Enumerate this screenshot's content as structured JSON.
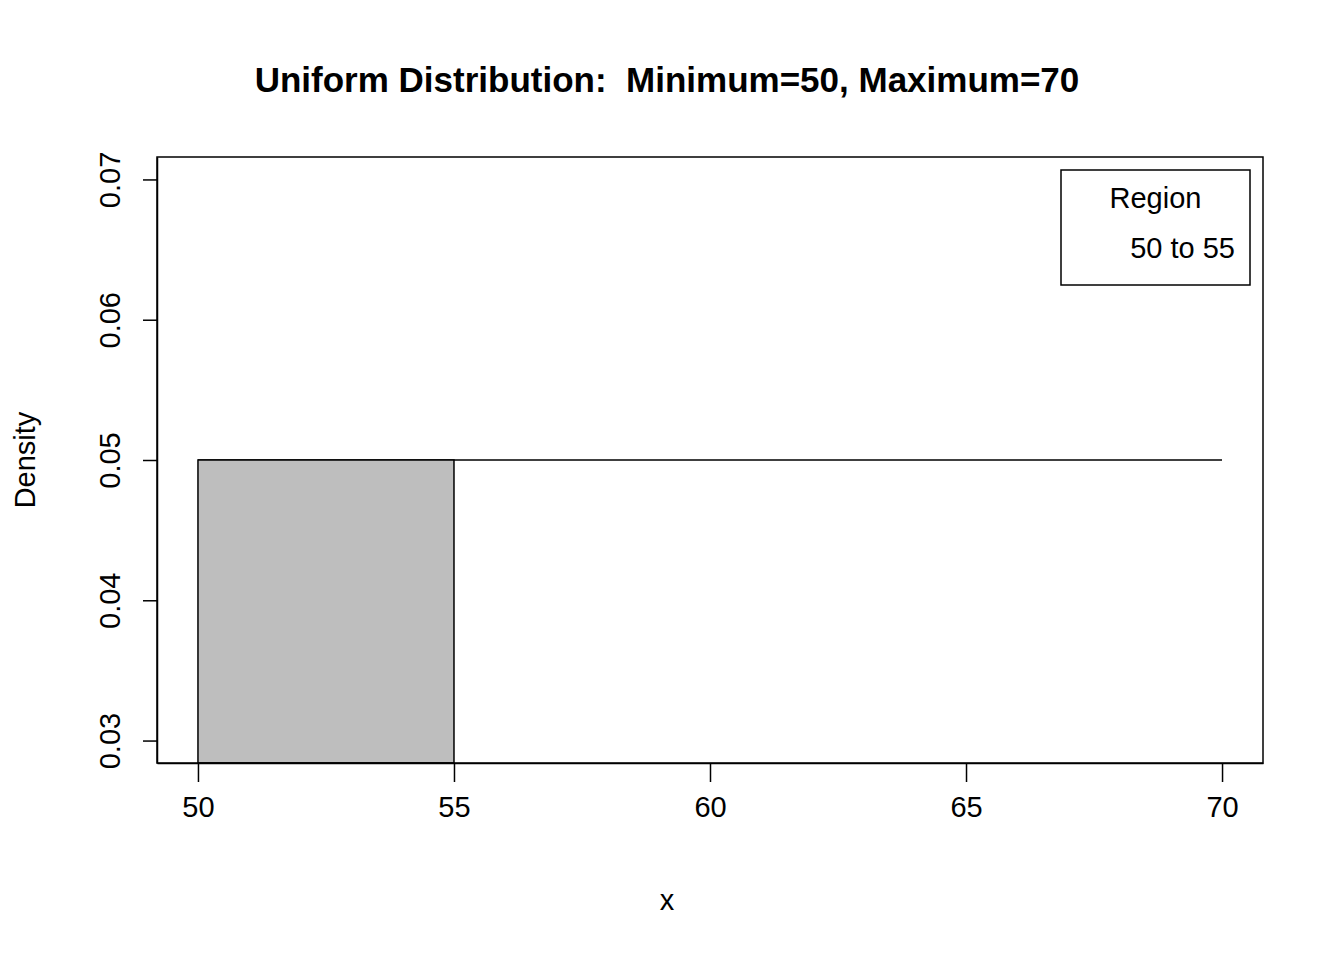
{
  "chart_data": {
    "type": "line",
    "title": "Uniform Distribution:  Minimum=50, Maximum=70",
    "xlabel": "x",
    "ylabel": "Density",
    "xlim": [
      49.2,
      70.8
    ],
    "xticks": [
      50,
      55,
      60,
      65,
      70
    ],
    "ylim": [
      0.0284,
      0.0716
    ],
    "yticks": [
      0.03,
      0.04,
      0.05,
      0.06,
      0.07
    ],
    "series": [
      {
        "type": "line",
        "color": "#000000",
        "x": [
          50,
          70
        ],
        "values": [
          0.05,
          0.05
        ]
      },
      {
        "name": "50 to 55",
        "type": "area",
        "color": "#bebebe",
        "x": [
          50,
          55
        ],
        "values": [
          0.05,
          0.05
        ]
      }
    ],
    "legend_title": "Region",
    "legend": "top-right",
    "grid": false
  }
}
